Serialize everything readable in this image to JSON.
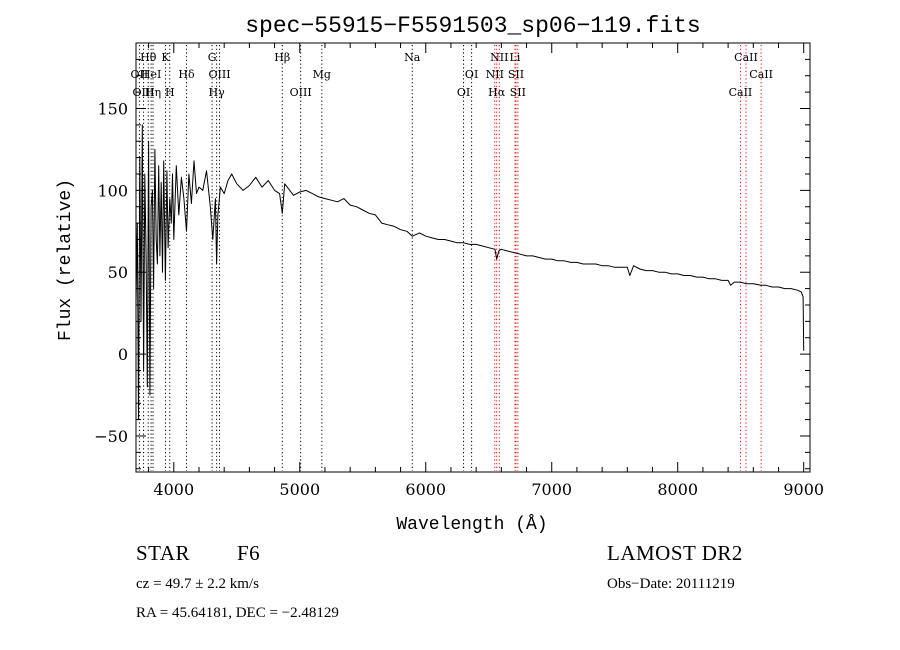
{
  "chart_data": {
    "type": "line",
    "title": "spec−55915−F5591503_sp06−119.fits",
    "xlabel": "Wavelength (Å)",
    "ylabel": "Flux (relative)",
    "xlim": [
      3700,
      9050
    ],
    "ylim": [
      -72,
      190
    ],
    "xticks": [
      4000,
      5000,
      6000,
      7000,
      8000,
      9000
    ],
    "xtick_labels": [
      "4000",
      "5000",
      "6000",
      "7000",
      "8000",
      "9000"
    ],
    "yticks": [
      -50,
      0,
      50,
      100,
      150
    ],
    "ytick_labels": [
      "−50",
      "0",
      "50",
      "100",
      "150"
    ],
    "grid": false,
    "series": [
      {
        "name": "flux",
        "x": [
          3700,
          3710,
          3720,
          3730,
          3740,
          3750,
          3760,
          3770,
          3780,
          3790,
          3800,
          3810,
          3820,
          3830,
          3840,
          3850,
          3860,
          3870,
          3880,
          3890,
          3900,
          3910,
          3920,
          3933,
          3945,
          3955,
          3968,
          3980,
          3990,
          4000,
          4020,
          4040,
          4060,
          4080,
          4101,
          4120,
          4140,
          4160,
          4180,
          4200,
          4230,
          4260,
          4290,
          4310,
          4330,
          4340,
          4350,
          4370,
          4400,
          4430,
          4460,
          4500,
          4550,
          4600,
          4650,
          4700,
          4750,
          4800,
          4840,
          4861,
          4880,
          4900,
          4950,
          5000,
          5050,
          5100,
          5150,
          5200,
          5250,
          5300,
          5350,
          5400,
          5450,
          5500,
          5550,
          5600,
          5650,
          5700,
          5750,
          5800,
          5850,
          5893,
          5950,
          6000,
          6050,
          6100,
          6150,
          6200,
          6250,
          6300,
          6350,
          6400,
          6450,
          6500,
          6550,
          6563,
          6580,
          6600,
          6650,
          6700,
          6750,
          6800,
          6850,
          6900,
          6950,
          7000,
          7050,
          7100,
          7150,
          7200,
          7250,
          7300,
          7350,
          7400,
          7450,
          7500,
          7550,
          7600,
          7620,
          7650,
          7700,
          7750,
          7800,
          7850,
          7900,
          7950,
          8000,
          8050,
          8100,
          8150,
          8200,
          8250,
          8300,
          8350,
          8400,
          8420,
          8450,
          8498,
          8542,
          8600,
          8662,
          8700,
          8750,
          8800,
          8850,
          8900,
          8950,
          8980,
          8995,
          9000
        ],
        "y": [
          30,
          80,
          -40,
          120,
          20,
          140,
          -10,
          110,
          60,
          -20,
          130,
          -25,
          90,
          100,
          40,
          125,
          70,
          55,
          115,
          60,
          105,
          50,
          118,
          45,
          112,
          65,
          95,
          80,
          110,
          70,
          115,
          85,
          108,
          95,
          75,
          110,
          92,
          118,
          98,
          102,
          100,
          112,
          90,
          70,
          95,
          55,
          85,
          102,
          98,
          106,
          110,
          104,
          100,
          103,
          108,
          102,
          106,
          100,
          98,
          86,
          104,
          102,
          97,
          99,
          100,
          98,
          96,
          95,
          94,
          93,
          95,
          91,
          90,
          88,
          86,
          85,
          80,
          79,
          78,
          76,
          75,
          72,
          74,
          72,
          71,
          70,
          70,
          69,
          68,
          68,
          67,
          67,
          66,
          65,
          64,
          58,
          63,
          64,
          63,
          62,
          61,
          60,
          60,
          59,
          58,
          58,
          57,
          57,
          56,
          56,
          55,
          55,
          55,
          54,
          54,
          53,
          53,
          53,
          48,
          54,
          52,
          51,
          51,
          50,
          50,
          49,
          49,
          48,
          48,
          47,
          47,
          46,
          46,
          45,
          45,
          42,
          44,
          44,
          43,
          43,
          42,
          42,
          41,
          41,
          40,
          40,
          39,
          38,
          35,
          2
        ]
      }
    ],
    "lines": [
      {
        "label": "Hθ",
        "wave": 3797,
        "row": 1,
        "color": "#000000"
      },
      {
        "label": "OII",
        "wave": 3727,
        "row": 2,
        "color": "#000000"
      },
      {
        "label": "HeI",
        "wave": 3820,
        "row": 2,
        "color": "#000000"
      },
      {
        "label": "OIII",
        "wave": 3760,
        "row": 3,
        "color": "#000000"
      },
      {
        "label": "Hη",
        "wave": 3835,
        "row": 3,
        "color": "#000000"
      },
      {
        "label": "K",
        "wave": 3934,
        "row": 1,
        "color": "#000000"
      },
      {
        "label": "H",
        "wave": 3968,
        "row": 3,
        "color": "#000000"
      },
      {
        "label": "Hδ",
        "wave": 4101,
        "row": 2,
        "color": "#000000"
      },
      {
        "label": "G",
        "wave": 4304,
        "row": 1,
        "color": "#000000"
      },
      {
        "label": "OIII",
        "wave": 4363,
        "row": 2,
        "color": "#000000"
      },
      {
        "label": "Hγ",
        "wave": 4340,
        "row": 3,
        "color": "#000000"
      },
      {
        "label": "Hβ",
        "wave": 4861,
        "row": 1,
        "color": "#000000"
      },
      {
        "label": "OIII",
        "wave": 5007,
        "row": 3,
        "color": "#000000"
      },
      {
        "label": "Mg",
        "wave": 5175,
        "row": 2,
        "color": "#000000"
      },
      {
        "label": "Na",
        "wave": 5893,
        "row": 1,
        "color": "#000000"
      },
      {
        "label": "OI",
        "wave": 6364,
        "row": 2,
        "color": "#000000"
      },
      {
        "label": "OI",
        "wave": 6300,
        "row": 3,
        "color": "#000000"
      },
      {
        "label": "NII",
        "wave": 6584,
        "row": 1,
        "color": "#ff0000"
      },
      {
        "label": "NII",
        "wave": 6548,
        "row": 2,
        "color": "#ff0000"
      },
      {
        "label": "Hα",
        "wave": 6563,
        "row": 3,
        "color": "#ff0000"
      },
      {
        "label": "Li",
        "wave": 6708,
        "row": 1,
        "color": "#ff0000"
      },
      {
        "label": "SII",
        "wave": 6716,
        "row": 2,
        "color": "#ff0000"
      },
      {
        "label": "SII",
        "wave": 6731,
        "row": 3,
        "color": "#ff0000"
      },
      {
        "label": "CaII",
        "wave": 8542,
        "row": 1,
        "color": "#ff0000"
      },
      {
        "label": "CaII",
        "wave": 8662,
        "row": 2,
        "color": "#ff0000"
      },
      {
        "label": "CaII",
        "wave": 8498,
        "row": 3,
        "color": "#ff0000"
      }
    ]
  },
  "info": {
    "object_class": "STAR",
    "subclass": "F6",
    "survey": "LAMOST DR2",
    "redshift": "cz = 49.7 ± 2.2 km/s",
    "obs_date": "Obs−Date: 20111219",
    "coords": "RA =  45.64181, DEC =  −2.48129"
  }
}
